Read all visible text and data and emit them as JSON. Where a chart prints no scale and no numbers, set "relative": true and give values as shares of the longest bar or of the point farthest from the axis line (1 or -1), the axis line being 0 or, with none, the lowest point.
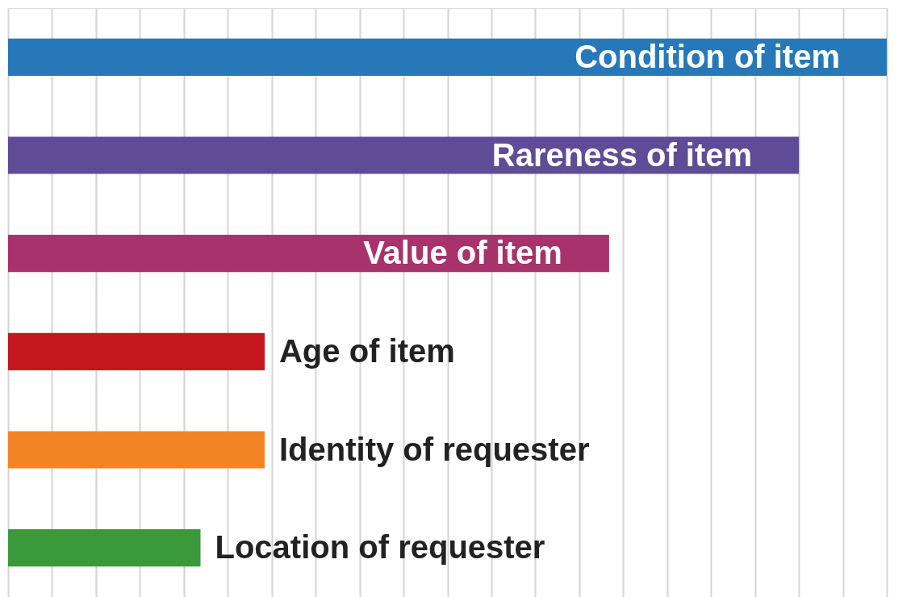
{
  "chart_data": {
    "type": "bar",
    "orientation": "horizontal",
    "relative": true,
    "grid": "x",
    "tick_labels": false,
    "categories": [
      "Condition of item",
      "Rareness of item",
      "Value of item",
      "Age of item",
      "Identity of requester",
      "Location of requester"
    ],
    "values": [
      1,
      0.9,
      0.684,
      0.292,
      0.292,
      0.219
    ],
    "colors": [
      "#2778b8",
      "#5f4b96",
      "#a8326b",
      "#c3161d",
      "#f38426",
      "#3a9a3b"
    ]
  }
}
